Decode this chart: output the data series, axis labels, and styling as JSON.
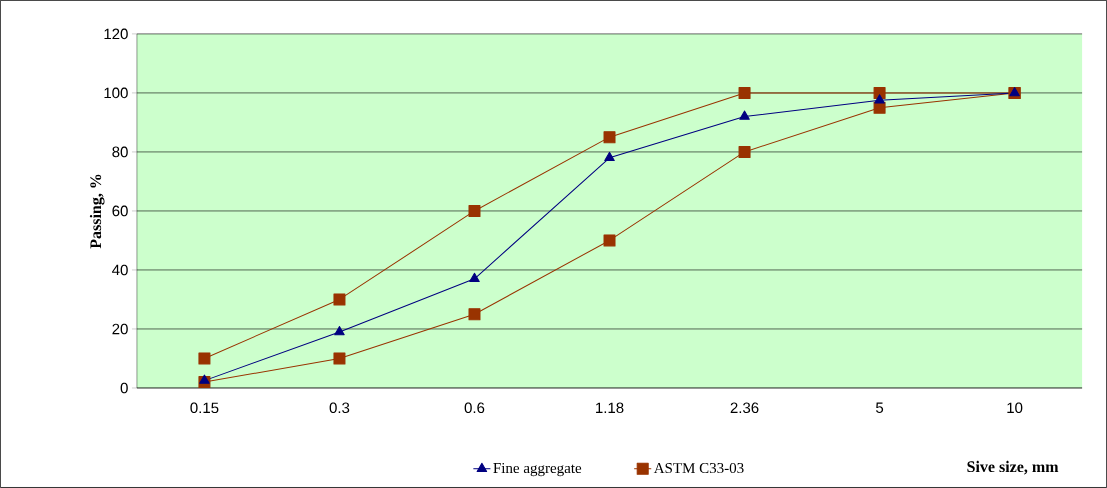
{
  "chart_data": {
    "type": "line",
    "xlabel": "Sive size, mm",
    "ylabel": "Passing, %",
    "categories": [
      "0.15",
      "0.3",
      "0.6",
      "1.18",
      "2.36",
      "5",
      "10"
    ],
    "series": [
      {
        "name": "Fine aggregate",
        "color": "#000080",
        "marker": "triangle",
        "values": [
          2.5,
          19,
          37,
          78,
          92,
          97.5,
          100
        ]
      },
      {
        "name": "ASTM C33-03",
        "color": "#993300",
        "marker": "square",
        "values": [
          10,
          30,
          60,
          85,
          100,
          100,
          100
        ]
      },
      {
        "color": "#993300",
        "marker": "square",
        "values": [
          2,
          10,
          25,
          50,
          80,
          95,
          100
        ]
      }
    ],
    "ylim": [
      0,
      120
    ],
    "yticks": [
      0,
      20,
      40,
      60,
      80,
      100,
      120
    ],
    "grid": "y",
    "legend": "bottom",
    "line_style": "solid"
  }
}
